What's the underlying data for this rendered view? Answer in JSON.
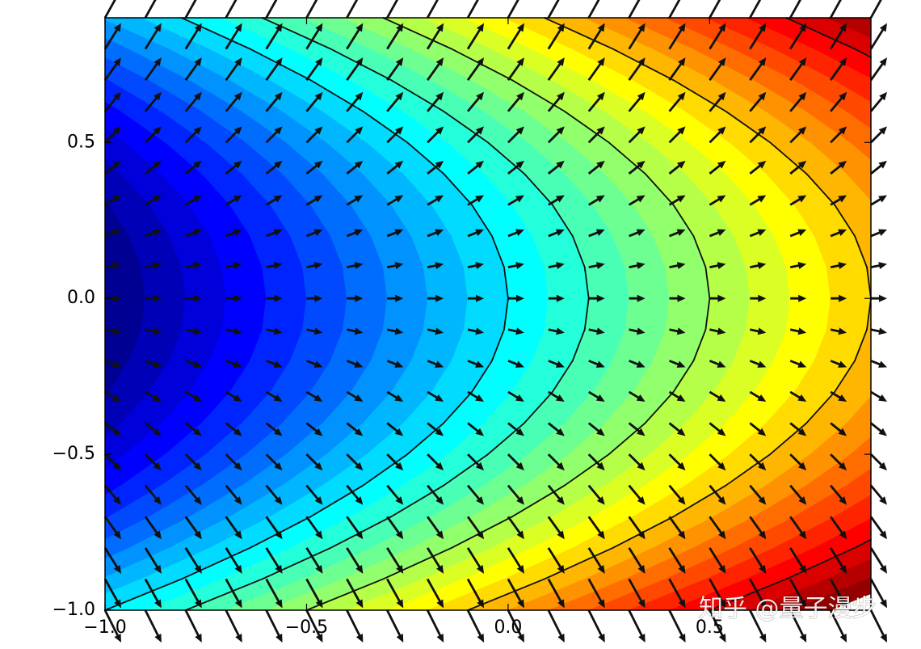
{
  "chart_data": {
    "type": "contour",
    "x": [
      -1,
      -0.9,
      -0.8,
      -0.7,
      -0.6,
      -0.5,
      -0.4,
      -0.3,
      -0.2,
      -0.1,
      0,
      0.1,
      0.2,
      0.3,
      0.4,
      0.5,
      0.6,
      0.7,
      0.8,
      0.9
    ],
    "y": [
      -1,
      -0.9,
      -0.8,
      -0.7,
      -0.6,
      -0.5,
      -0.4,
      -0.3,
      -0.2,
      -0.1,
      0,
      0.1,
      0.2,
      0.3,
      0.4,
      0.5,
      0.6,
      0.7,
      0.8,
      0.9
    ],
    "z": [
      [
        0,
        0.1,
        0.2,
        0.3,
        0.4,
        0.5,
        0.6,
        0.7,
        0.8,
        0.9,
        1,
        1.1,
        1.2,
        1.3,
        1.4,
        1.5,
        1.6,
        1.7,
        1.8,
        1.9
      ],
      [
        -0.19,
        -0.09,
        0.01,
        0.11,
        0.21,
        0.31,
        0.41,
        0.51,
        0.61,
        0.71,
        0.81,
        0.91,
        1.01,
        1.11,
        1.21,
        1.31,
        1.41,
        1.51,
        1.61,
        1.71
      ],
      [
        -0.36,
        -0.26,
        -0.16,
        -0.06,
        0.04,
        0.14,
        0.24,
        0.34,
        0.44,
        0.54,
        0.64,
        0.74,
        0.84,
        0.94,
        1.04,
        1.14,
        1.24,
        1.34,
        1.44,
        1.54
      ],
      [
        -0.51,
        -0.41,
        -0.31,
        -0.21,
        -0.11,
        -0.01,
        0.09,
        0.19,
        0.29,
        0.39,
        0.49,
        0.59,
        0.69,
        0.79,
        0.89,
        0.99,
        1.09,
        1.19,
        1.29,
        1.39
      ],
      [
        -0.64,
        -0.54,
        -0.44,
        -0.34,
        -0.24,
        -0.14,
        -0.04,
        0.06,
        0.16,
        0.26,
        0.36,
        0.46,
        0.56,
        0.66,
        0.76,
        0.86,
        0.96,
        1.06,
        1.16,
        1.26
      ],
      [
        -0.75,
        -0.65,
        -0.55,
        -0.45,
        -0.35,
        -0.25,
        -0.15,
        -0.05,
        0.05,
        0.15,
        0.25,
        0.35,
        0.45,
        0.55,
        0.65,
        0.75,
        0.85,
        0.95,
        1.05,
        1.15
      ],
      [
        -0.84,
        -0.74,
        -0.64,
        -0.54,
        -0.44,
        -0.34,
        -0.24,
        -0.14,
        -0.04,
        0.06,
        0.16,
        0.26,
        0.36,
        0.46,
        0.56,
        0.66,
        0.76,
        0.86,
        0.96,
        1.06
      ],
      [
        -0.91,
        -0.81,
        -0.71,
        -0.61,
        -0.51,
        -0.41,
        -0.31,
        -0.21,
        -0.11,
        -0.01,
        0.09,
        0.19,
        0.29,
        0.39,
        0.49,
        0.59,
        0.69,
        0.79,
        0.89,
        0.99
      ],
      [
        -0.96,
        -0.86,
        -0.76,
        -0.66,
        -0.56,
        -0.46,
        -0.36,
        -0.26,
        -0.16,
        -0.06,
        0.04,
        0.14,
        0.24,
        0.34,
        0.44,
        0.54,
        0.64,
        0.74,
        0.84,
        0.94
      ],
      [
        -0.99,
        -0.89,
        -0.79,
        -0.69,
        -0.59,
        -0.49,
        -0.39,
        -0.29,
        -0.19,
        -0.09,
        0.01,
        0.11,
        0.21,
        0.31,
        0.41,
        0.51,
        0.61,
        0.71,
        0.81,
        0.91
      ],
      [
        -1,
        -0.9,
        -0.8,
        -0.7,
        -0.6,
        -0.5,
        -0.4,
        -0.3,
        -0.2,
        -0.1,
        0,
        0.1,
        0.2,
        0.3,
        0.4,
        0.5,
        0.6,
        0.7,
        0.8,
        0.9
      ],
      [
        -0.99,
        -0.89,
        -0.79,
        -0.69,
        -0.59,
        -0.49,
        -0.39,
        -0.29,
        -0.19,
        -0.09,
        0.01,
        0.11,
        0.21,
        0.31,
        0.41,
        0.51,
        0.61,
        0.71,
        0.81,
        0.91
      ],
      [
        -0.96,
        -0.86,
        -0.76,
        -0.66,
        -0.56,
        -0.46,
        -0.36,
        -0.26,
        -0.16,
        -0.06,
        0.04,
        0.14,
        0.24,
        0.34,
        0.44,
        0.54,
        0.64,
        0.74,
        0.84,
        0.94
      ],
      [
        -0.91,
        -0.81,
        -0.71,
        -0.61,
        -0.51,
        -0.41,
        -0.31,
        -0.21,
        -0.11,
        -0.01,
        0.09,
        0.19,
        0.29,
        0.39,
        0.49,
        0.59,
        0.69,
        0.79,
        0.89,
        0.99
      ],
      [
        -0.84,
        -0.74,
        -0.64,
        -0.54,
        -0.44,
        -0.34,
        -0.24,
        -0.14,
        -0.04,
        0.06,
        0.16,
        0.26,
        0.36,
        0.46,
        0.56,
        0.66,
        0.76,
        0.86,
        0.96,
        1.06
      ],
      [
        -0.75,
        -0.65,
        -0.55,
        -0.45,
        -0.35,
        -0.25,
        -0.15,
        -0.05,
        0.05,
        0.15,
        0.25,
        0.35,
        0.45,
        0.55,
        0.65,
        0.75,
        0.85,
        0.95,
        1.05,
        1.15
      ],
      [
        -0.64,
        -0.54,
        -0.44,
        -0.34,
        -0.24,
        -0.14,
        -0.04,
        0.06,
        0.16,
        0.26,
        0.36,
        0.46,
        0.56,
        0.66,
        0.76,
        0.86,
        0.96,
        1.06,
        1.16,
        1.26
      ],
      [
        -0.51,
        -0.41,
        -0.31,
        -0.21,
        -0.11,
        -0.01,
        0.09,
        0.19,
        0.29,
        0.39,
        0.49,
        0.59,
        0.69,
        0.79,
        0.89,
        0.99,
        1.09,
        1.19,
        1.29,
        1.39
      ],
      [
        -0.36,
        -0.26,
        -0.16,
        -0.06,
        0.04,
        0.14,
        0.24,
        0.34,
        0.44,
        0.54,
        0.64,
        0.74,
        0.84,
        0.94,
        1.04,
        1.14,
        1.24,
        1.34,
        1.44,
        1.54
      ],
      [
        -0.19,
        -0.09,
        0.01,
        0.11,
        0.21,
        0.31,
        0.41,
        0.51,
        0.61,
        0.71,
        0.81,
        0.91,
        1.01,
        1.11,
        1.21,
        1.31,
        1.41,
        1.51,
        1.61,
        1.71
      ]
    ],
    "u": [
      [
        1,
        1,
        1,
        1,
        1,
        1,
        1,
        1,
        1,
        1,
        1,
        1,
        1,
        1,
        1,
        1,
        1,
        1,
        1,
        1
      ],
      [
        1,
        1,
        1,
        1,
        1,
        1,
        1,
        1,
        1,
        1,
        1,
        1,
        1,
        1,
        1,
        1,
        1,
        1,
        1,
        1
      ],
      [
        1,
        1,
        1,
        1,
        1,
        1,
        1,
        1,
        1,
        1,
        1,
        1,
        1,
        1,
        1,
        1,
        1,
        1,
        1,
        1
      ],
      [
        1,
        1,
        1,
        1,
        1,
        1,
        1,
        1,
        1,
        1,
        1,
        1,
        1,
        1,
        1,
        1,
        1,
        1,
        1,
        1
      ],
      [
        1,
        1,
        1,
        1,
        1,
        1,
        1,
        1,
        1,
        1,
        1,
        1,
        1,
        1,
        1,
        1,
        1,
        1,
        1,
        1
      ],
      [
        1,
        1,
        1,
        1,
        1,
        1,
        1,
        1,
        1,
        1,
        1,
        1,
        1,
        1,
        1,
        1,
        1,
        1,
        1,
        1
      ],
      [
        1,
        1,
        1,
        1,
        1,
        1,
        1,
        1,
        1,
        1,
        1,
        1,
        1,
        1,
        1,
        1,
        1,
        1,
        1,
        1
      ],
      [
        1,
        1,
        1,
        1,
        1,
        1,
        1,
        1,
        1,
        1,
        1,
        1,
        1,
        1,
        1,
        1,
        1,
        1,
        1,
        1
      ],
      [
        1,
        1,
        1,
        1,
        1,
        1,
        1,
        1,
        1,
        1,
        1,
        1,
        1,
        1,
        1,
        1,
        1,
        1,
        1,
        1
      ],
      [
        1,
        1,
        1,
        1,
        1,
        1,
        1,
        1,
        1,
        1,
        1,
        1,
        1,
        1,
        1,
        1,
        1,
        1,
        1,
        1
      ],
      [
        1,
        1,
        1,
        1,
        1,
        1,
        1,
        1,
        1,
        1,
        1,
        1,
        1,
        1,
        1,
        1,
        1,
        1,
        1,
        1
      ],
      [
        1,
        1,
        1,
        1,
        1,
        1,
        1,
        1,
        1,
        1,
        1,
        1,
        1,
        1,
        1,
        1,
        1,
        1,
        1,
        1
      ],
      [
        1,
        1,
        1,
        1,
        1,
        1,
        1,
        1,
        1,
        1,
        1,
        1,
        1,
        1,
        1,
        1,
        1,
        1,
        1,
        1
      ],
      [
        1,
        1,
        1,
        1,
        1,
        1,
        1,
        1,
        1,
        1,
        1,
        1,
        1,
        1,
        1,
        1,
        1,
        1,
        1,
        1
      ],
      [
        1,
        1,
        1,
        1,
        1,
        1,
        1,
        1,
        1,
        1,
        1,
        1,
        1,
        1,
        1,
        1,
        1,
        1,
        1,
        1
      ],
      [
        1,
        1,
        1,
        1,
        1,
        1,
        1,
        1,
        1,
        1,
        1,
        1,
        1,
        1,
        1,
        1,
        1,
        1,
        1,
        1
      ],
      [
        1,
        1,
        1,
        1,
        1,
        1,
        1,
        1,
        1,
        1,
        1,
        1,
        1,
        1,
        1,
        1,
        1,
        1,
        1,
        1
      ],
      [
        1,
        1,
        1,
        1,
        1,
        1,
        1,
        1,
        1,
        1,
        1,
        1,
        1,
        1,
        1,
        1,
        1,
        1,
        1,
        1
      ],
      [
        1,
        1,
        1,
        1,
        1,
        1,
        1,
        1,
        1,
        1,
        1,
        1,
        1,
        1,
        1,
        1,
        1,
        1,
        1,
        1
      ],
      [
        1,
        1,
        1,
        1,
        1,
        1,
        1,
        1,
        1,
        1,
        1,
        1,
        1,
        1,
        1,
        1,
        1,
        1,
        1,
        1
      ]
    ],
    "v": [
      [
        -2,
        -2,
        -2,
        -2,
        -2,
        -2,
        -2,
        -2,
        -2,
        -2,
        -2,
        -2,
        -2,
        -2,
        -2,
        -2,
        -2,
        -2,
        -2,
        -2
      ],
      [
        -1.8,
        -1.8,
        -1.8,
        -1.8,
        -1.8,
        -1.8,
        -1.8,
        -1.8,
        -1.8,
        -1.8,
        -1.8,
        -1.8,
        -1.8,
        -1.8,
        -1.8,
        -1.8,
        -1.8,
        -1.8,
        -1.8,
        -1.8
      ],
      [
        -1.6,
        -1.6,
        -1.6,
        -1.6,
        -1.6,
        -1.6,
        -1.6,
        -1.6,
        -1.6,
        -1.6,
        -1.6,
        -1.6,
        -1.6,
        -1.6,
        -1.6,
        -1.6,
        -1.6,
        -1.6,
        -1.6,
        -1.6
      ],
      [
        -1.4,
        -1.4,
        -1.4,
        -1.4,
        -1.4,
        -1.4,
        -1.4,
        -1.4,
        -1.4,
        -1.4,
        -1.4,
        -1.4,
        -1.4,
        -1.4,
        -1.4,
        -1.4,
        -1.4,
        -1.4,
        -1.4,
        -1.4
      ],
      [
        -1.2,
        -1.2,
        -1.2,
        -1.2,
        -1.2,
        -1.2,
        -1.2,
        -1.2,
        -1.2,
        -1.2,
        -1.2,
        -1.2,
        -1.2,
        -1.2,
        -1.2,
        -1.2,
        -1.2,
        -1.2,
        -1.2,
        -1.2
      ],
      [
        -1,
        -1,
        -1,
        -1,
        -1,
        -1,
        -1,
        -1,
        -1,
        -1,
        -1,
        -1,
        -1,
        -1,
        -1,
        -1,
        -1,
        -1,
        -1,
        -1
      ],
      [
        -0.8,
        -0.8,
        -0.8,
        -0.8,
        -0.8,
        -0.8,
        -0.8,
        -0.8,
        -0.8,
        -0.8,
        -0.8,
        -0.8,
        -0.8,
        -0.8,
        -0.8,
        -0.8,
        -0.8,
        -0.8,
        -0.8,
        -0.8
      ],
      [
        -0.6,
        -0.6,
        -0.6,
        -0.6,
        -0.6,
        -0.6,
        -0.6,
        -0.6,
        -0.6,
        -0.6,
        -0.6,
        -0.6,
        -0.6,
        -0.6,
        -0.6,
        -0.6,
        -0.6,
        -0.6,
        -0.6,
        -0.6
      ],
      [
        -0.4,
        -0.4,
        -0.4,
        -0.4,
        -0.4,
        -0.4,
        -0.4,
        -0.4,
        -0.4,
        -0.4,
        -0.4,
        -0.4,
        -0.4,
        -0.4,
        -0.4,
        -0.4,
        -0.4,
        -0.4,
        -0.4,
        -0.4
      ],
      [
        -0.2,
        -0.2,
        -0.2,
        -0.2,
        -0.2,
        -0.2,
        -0.2,
        -0.2,
        -0.2,
        -0.2,
        -0.2,
        -0.2,
        -0.2,
        -0.2,
        -0.2,
        -0.2,
        -0.2,
        -0.2,
        -0.2,
        -0.2
      ],
      [
        0,
        0,
        0,
        0,
        0,
        0,
        0,
        0,
        0,
        0,
        0,
        0,
        0,
        0,
        0,
        0,
        0,
        0,
        0,
        0
      ],
      [
        0.2,
        0.2,
        0.2,
        0.2,
        0.2,
        0.2,
        0.2,
        0.2,
        0.2,
        0.2,
        0.2,
        0.2,
        0.2,
        0.2,
        0.2,
        0.2,
        0.2,
        0.2,
        0.2,
        0.2
      ],
      [
        0.4,
        0.4,
        0.4,
        0.4,
        0.4,
        0.4,
        0.4,
        0.4,
        0.4,
        0.4,
        0.4,
        0.4,
        0.4,
        0.4,
        0.4,
        0.4,
        0.4,
        0.4,
        0.4,
        0.4
      ],
      [
        0.6,
        0.6,
        0.6,
        0.6,
        0.6,
        0.6,
        0.6,
        0.6,
        0.6,
        0.6,
        0.6,
        0.6,
        0.6,
        0.6,
        0.6,
        0.6,
        0.6,
        0.6,
        0.6,
        0.6
      ],
      [
        0.8,
        0.8,
        0.8,
        0.8,
        0.8,
        0.8,
        0.8,
        0.8,
        0.8,
        0.8,
        0.8,
        0.8,
        0.8,
        0.8,
        0.8,
        0.8,
        0.8,
        0.8,
        0.8,
        0.8
      ],
      [
        1,
        1,
        1,
        1,
        1,
        1,
        1,
        1,
        1,
        1,
        1,
        1,
        1,
        1,
        1,
        1,
        1,
        1,
        1,
        1
      ],
      [
        1.2,
        1.2,
        1.2,
        1.2,
        1.2,
        1.2,
        1.2,
        1.2,
        1.2,
        1.2,
        1.2,
        1.2,
        1.2,
        1.2,
        1.2,
        1.2,
        1.2,
        1.2,
        1.2,
        1.2
      ],
      [
        1.4,
        1.4,
        1.4,
        1.4,
        1.4,
        1.4,
        1.4,
        1.4,
        1.4,
        1.4,
        1.4,
        1.4,
        1.4,
        1.4,
        1.4,
        1.4,
        1.4,
        1.4,
        1.4,
        1.4
      ],
      [
        1.6,
        1.6,
        1.6,
        1.6,
        1.6,
        1.6,
        1.6,
        1.6,
        1.6,
        1.6,
        1.6,
        1.6,
        1.6,
        1.6,
        1.6,
        1.6,
        1.6,
        1.6,
        1.6,
        1.6
      ],
      [
        1.8,
        1.8,
        1.8,
        1.8,
        1.8,
        1.8,
        1.8,
        1.8,
        1.8,
        1.8,
        1.8,
        1.8,
        1.8,
        1.8,
        1.8,
        1.8,
        1.8,
        1.8,
        1.8,
        1.8
      ]
    ],
    "fill_levels": [
      -1,
      -0.9,
      -0.8,
      -0.7,
      -0.6,
      -0.5,
      -0.4,
      -0.3,
      -0.2,
      -0.1,
      0,
      0.1,
      0.2,
      0.3,
      0.4,
      0.5,
      0.6,
      0.7,
      0.8,
      0.9,
      1,
      1.1,
      1.2,
      1.3,
      1.4,
      1.5,
      1.6,
      1.7,
      1.8
    ],
    "line_levels": [
      0,
      0.2,
      0.5,
      0.9,
      1.5
    ],
    "colormap": "jet",
    "line_color": "#111111",
    "arrow_color": "#111111",
    "xlim": [
      -1,
      0.9
    ],
    "ylim": [
      -1,
      0.9
    ],
    "xticks": [
      {
        "value": -1,
        "label": "−1.0"
      },
      {
        "value": -0.5,
        "label": "−0.5"
      },
      {
        "value": 0,
        "label": "0.0"
      },
      {
        "value": 0.5,
        "label": "0.5"
      }
    ],
    "yticks": [
      {
        "value": -1,
        "label": "−1.0"
      },
      {
        "value": -0.5,
        "label": "−0.5"
      },
      {
        "value": 0,
        "label": "0.0"
      },
      {
        "value": 0.5,
        "label": "0.5"
      }
    ],
    "watermark": "知乎 @量子漫步"
  }
}
